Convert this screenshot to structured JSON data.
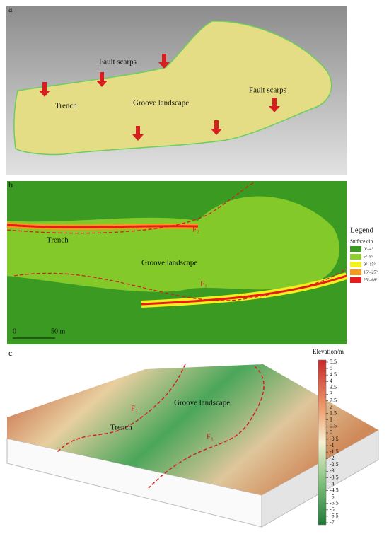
{
  "panel_a": {
    "label": "a",
    "annotations": [
      "Fault scarps",
      "Fault scarps",
      "Trench",
      "Groove landscape"
    ]
  },
  "panel_b": {
    "label": "b",
    "annotations": [
      "Trench",
      "Groove landscape",
      "F₂",
      "F₁"
    ],
    "legend": {
      "title": "Legend",
      "subtitle": "Surface dip",
      "items": [
        {
          "label": "0°–4°",
          "color": "#3a9a22"
        },
        {
          "label": "5°–9°",
          "color": "#8fd12a"
        },
        {
          "label": "9°–15°",
          "color": "#f2f01e"
        },
        {
          "label": "15°–25°",
          "color": "#f39a1c"
        },
        {
          "label": "25°–68°",
          "color": "#e81c1c"
        }
      ]
    },
    "scale_bar": [
      "0",
      "50 m"
    ]
  },
  "panel_c": {
    "label": "c",
    "annotations": [
      "Groove landscape",
      "Trench",
      "F₂",
      "F₁"
    ],
    "colorbar": {
      "title": "Elevation/m",
      "ticks": [
        5.5,
        5,
        4.5,
        4,
        3.5,
        3,
        2.5,
        2,
        1.5,
        1,
        0.5,
        0,
        -0.5,
        -1,
        -1.5,
        -2,
        -2.5,
        -3,
        -3.5,
        -4,
        -4.5,
        -5,
        -5.5,
        -6,
        -6.5,
        -7
      ]
    }
  }
}
